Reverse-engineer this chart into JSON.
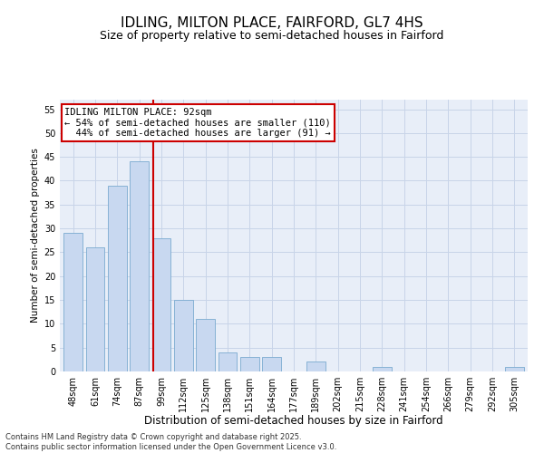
{
  "title": "IDLING, MILTON PLACE, FAIRFORD, GL7 4HS",
  "subtitle": "Size of property relative to semi-detached houses in Fairford",
  "xlabel": "Distribution of semi-detached houses by size in Fairford",
  "ylabel": "Number of semi-detached properties",
  "categories": [
    "48sqm",
    "61sqm",
    "74sqm",
    "87sqm",
    "99sqm",
    "112sqm",
    "125sqm",
    "138sqm",
    "151sqm",
    "164sqm",
    "177sqm",
    "189sqm",
    "202sqm",
    "215sqm",
    "228sqm",
    "241sqm",
    "254sqm",
    "266sqm",
    "279sqm",
    "292sqm",
    "305sqm"
  ],
  "values": [
    29,
    26,
    39,
    44,
    28,
    15,
    11,
    4,
    3,
    3,
    0,
    2,
    0,
    0,
    1,
    0,
    0,
    0,
    0,
    0,
    1
  ],
  "bar_color": "#c8d8f0",
  "bar_edge_color": "#7aaad0",
  "grid_color": "#c8d4e8",
  "background_color": "#e8eef8",
  "vline_x_index": 3.62,
  "vline_color": "#cc0000",
  "annotation_text": "IDLING MILTON PLACE: 92sqm\n← 54% of semi-detached houses are smaller (110)\n  44% of semi-detached houses are larger (91) →",
  "annotation_box_color": "#ffffff",
  "annotation_box_edge": "#cc0000",
  "footnote": "Contains HM Land Registry data © Crown copyright and database right 2025.\nContains public sector information licensed under the Open Government Licence v3.0.",
  "ylim": [
    0,
    57
  ],
  "yticks": [
    0,
    5,
    10,
    15,
    20,
    25,
    30,
    35,
    40,
    45,
    50,
    55
  ],
  "title_fontsize": 11,
  "subtitle_fontsize": 9,
  "xlabel_fontsize": 8.5,
  "ylabel_fontsize": 7.5,
  "tick_fontsize": 7,
  "annot_fontsize": 7.5,
  "footnote_fontsize": 6
}
